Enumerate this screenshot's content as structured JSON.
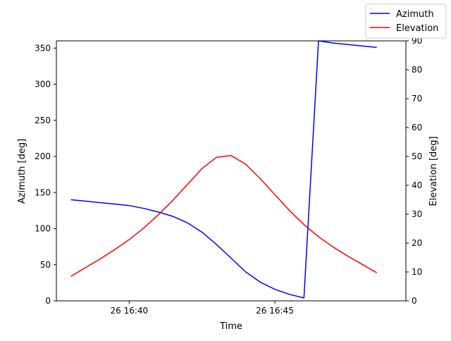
{
  "chart_data": {
    "type": "line",
    "title": "",
    "xlabel": "Time",
    "ylabel_left": "Azimuth [deg]",
    "ylabel_right": "Elevation [deg]",
    "x_ticks": [
      "26 16:40",
      "26 16:45"
    ],
    "x_tick_minutes": [
      40,
      45
    ],
    "x_range_minutes": [
      37.5,
      49.5
    ],
    "left_axis": {
      "ylim": [
        0,
        360
      ],
      "ticks": [
        0,
        50,
        100,
        150,
        200,
        250,
        300,
        350
      ]
    },
    "right_axis": {
      "ylim": [
        0,
        90
      ],
      "ticks": [
        0,
        10,
        20,
        30,
        40,
        50,
        60,
        70,
        80,
        90
      ]
    },
    "grid": false,
    "legend_position": "top-right",
    "x_unit": "minutes past 16:00 on the 26th",
    "series": [
      {
        "name": "Azimuth",
        "axis": "left",
        "color": "#0000ff",
        "x": [
          38.0,
          38.5,
          39.0,
          39.5,
          40.0,
          40.5,
          41.0,
          41.5,
          42.0,
          42.5,
          43.0,
          43.5,
          44.0,
          44.5,
          45.0,
          45.5,
          46.0,
          46.5,
          47.0,
          47.5,
          48.0,
          48.5
        ],
        "values": [
          140,
          138,
          136,
          134,
          132,
          128,
          123,
          117,
          108,
          95,
          78,
          59,
          40,
          26,
          16,
          9,
          4,
          360,
          357,
          355,
          353,
          351
        ]
      },
      {
        "name": "Elevation",
        "axis": "right",
        "color": "#ff0000",
        "x": [
          38.0,
          38.5,
          39.0,
          39.5,
          40.0,
          40.5,
          41.0,
          41.5,
          42.0,
          42.5,
          43.0,
          43.5,
          44.0,
          44.5,
          45.0,
          45.5,
          46.0,
          46.5,
          47.0,
          47.5,
          48.0,
          48.5
        ],
        "values": [
          8.5,
          11.5,
          14.5,
          17.7,
          21.2,
          25.2,
          29.8,
          34.8,
          40.3,
          45.8,
          49.7,
          50.3,
          47.3,
          42.3,
          36.8,
          31.3,
          26.4,
          22.2,
          18.6,
          15.5,
          12.6,
          9.7
        ]
      }
    ]
  }
}
